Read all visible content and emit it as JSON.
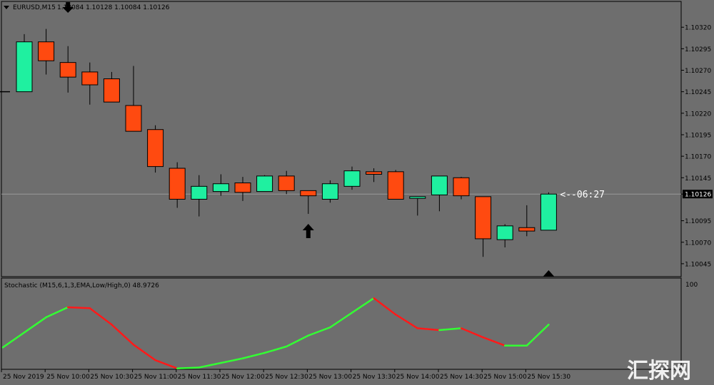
{
  "header": {
    "symbol_timeframe": "EURUSD,M15",
    "ohlc": "1.10084 1.10128 1.10084 1.10126"
  },
  "indicator": {
    "label": "Stochastic (M15,6,1,3,EMA,Low/High,0) 48.9726",
    "max_label": "100"
  },
  "countdown": "<--06:27",
  "watermark": "汇探网",
  "colors": {
    "background": "#6e6e6e",
    "bull": "#1ff0a0",
    "bear": "#ff4a10",
    "wick": "#000000",
    "stoch_up": "#33ff33",
    "stoch_down": "#ff1a1a",
    "arrow": "#000000"
  },
  "chart_data": [
    {
      "type": "candlestick",
      "symbol": "EURUSD",
      "timeframe": "M15",
      "ylim": [
        1.1003,
        1.1035
      ],
      "y_ticks": [
        "1.10320",
        "1.10295",
        "1.10270",
        "1.10245",
        "1.10220",
        "1.10195",
        "1.10170",
        "1.10145",
        "1.10126",
        "1.10095",
        "1.10070",
        "1.10045"
      ],
      "current_price": "1.10126",
      "candles": [
        {
          "open": 1.10245,
          "high": 1.10312,
          "low": 1.10245,
          "close": 1.10303
        },
        {
          "open": 1.10303,
          "high": 1.10318,
          "low": 1.10265,
          "close": 1.10281
        },
        {
          "open": 1.10279,
          "high": 1.10298,
          "low": 1.10244,
          "close": 1.10262
        },
        {
          "open": 1.10268,
          "high": 1.10279,
          "low": 1.1023,
          "close": 1.10253
        },
        {
          "open": 1.1026,
          "high": 1.10268,
          "low": 1.10235,
          "close": 1.10233
        },
        {
          "open": 1.10229,
          "high": 1.10275,
          "low": 1.10199,
          "close": 1.10199
        },
        {
          "open": 1.10201,
          "high": 1.10206,
          "low": 1.10151,
          "close": 1.10158
        },
        {
          "open": 1.10156,
          "high": 1.10163,
          "low": 1.1011,
          "close": 1.1012
        },
        {
          "open": 1.1012,
          "high": 1.10148,
          "low": 1.101,
          "close": 1.10135
        },
        {
          "open": 1.10129,
          "high": 1.10149,
          "low": 1.10124,
          "close": 1.10138
        },
        {
          "open": 1.10139,
          "high": 1.10146,
          "low": 1.10118,
          "close": 1.10128
        },
        {
          "open": 1.10129,
          "high": 1.10148,
          "low": 1.1013,
          "close": 1.10147
        },
        {
          "open": 1.10147,
          "high": 1.10153,
          "low": 1.10126,
          "close": 1.1013
        },
        {
          "open": 1.1013,
          "high": 1.1013,
          "low": 1.10103,
          "close": 1.10124
        },
        {
          "open": 1.1012,
          "high": 1.10142,
          "low": 1.10116,
          "close": 1.10138
        },
        {
          "open": 1.10135,
          "high": 1.10158,
          "low": 1.10131,
          "close": 1.10153
        },
        {
          "open": 1.10152,
          "high": 1.10156,
          "low": 1.1014,
          "close": 1.10149
        },
        {
          "open": 1.10152,
          "high": 1.10154,
          "low": 1.1012,
          "close": 1.1012
        },
        {
          "open": 1.10121,
          "high": 1.10123,
          "low": 1.10101,
          "close": 1.10123
        },
        {
          "open": 1.10125,
          "high": 1.10147,
          "low": 1.10106,
          "close": 1.10147
        },
        {
          "open": 1.10145,
          "high": 1.10146,
          "low": 1.1012,
          "close": 1.10124
        },
        {
          "open": 1.10123,
          "high": 1.10123,
          "low": 1.10053,
          "close": 1.10074
        },
        {
          "open": 1.10073,
          "high": 1.10091,
          "low": 1.10064,
          "close": 1.10089
        },
        {
          "open": 1.10087,
          "high": 1.10113,
          "low": 1.10077,
          "close": 1.10083
        },
        {
          "open": 1.10084,
          "high": 1.10128,
          "low": 1.10084,
          "close": 1.10126
        }
      ],
      "arrows": [
        {
          "type": "down",
          "candle_index": 2
        },
        {
          "type": "up",
          "candle_index": 13
        },
        {
          "type": "up",
          "candle_index": 24
        }
      ]
    },
    {
      "type": "line",
      "title": "Stochastic (M15,6,1,3,EMA,Low/High,0) 48.9726",
      "ylim": [
        0,
        100
      ],
      "y_ticks": [
        "100"
      ],
      "last_value": 48.9726,
      "values": [
        24,
        57,
        68,
        67,
        49,
        27,
        10,
        1,
        2,
        7,
        12,
        18,
        25,
        37,
        46,
        62,
        78,
        60,
        45,
        43,
        45,
        35,
        26,
        26,
        48.97
      ],
      "x_tick_labels": [
        "25 Nov 2019",
        "25 Nov 10:00",
        "25 Nov 10:30",
        "25 Nov 11:00",
        "25 Nov 11:30",
        "25 Nov 12:00",
        "25 Nov 12:30",
        "25 Nov 13:00",
        "25 Nov 13:30",
        "25 Nov 14:00",
        "25 Nov 14:30",
        "25 Nov 15:00",
        "25 Nov 15:30"
      ]
    }
  ]
}
